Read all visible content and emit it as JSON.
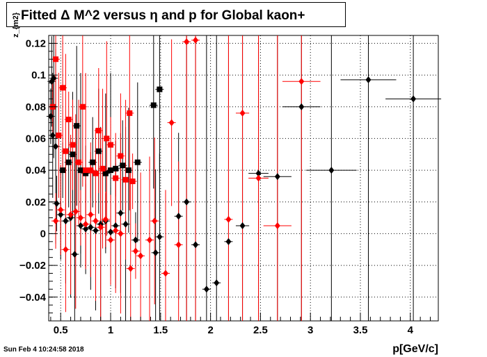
{
  "chart_data": {
    "type": "scatter",
    "title": "Fitted Δ M^2 versus η and p for Global kaon+",
    "xlabel": "p[GeV/c]",
    "ylabel": "z_{m2}",
    "xlim": [
      0.38,
      4.28
    ],
    "ylim": [
      -0.055,
      0.125
    ],
    "x_ticks": [
      0.5,
      1,
      1.5,
      2,
      2.5,
      3,
      3.5,
      4
    ],
    "x_tick_labels": [
      "0.5",
      "1",
      "1.5",
      "2",
      "2.5",
      "3",
      "3.5",
      "4"
    ],
    "y_ticks": [
      -0.04,
      -0.02,
      0,
      0.02,
      0.04,
      0.06,
      0.08,
      0.1,
      0.12
    ],
    "y_tick_labels": [
      "−0.04",
      "−0.02",
      "0",
      "0.02",
      "0.04",
      "0.06",
      "0.08",
      "0.1",
      "0.12"
    ],
    "grid": true,
    "series": [
      {
        "color": "#000000",
        "marker": "diamond",
        "points": [
          {
            "x": 0.4,
            "y": 0.074
          },
          {
            "x": 0.41,
            "y": 0.096
          },
          {
            "x": 0.42,
            "y": 0.062
          },
          {
            "x": 0.43,
            "y": 0.098
          },
          {
            "x": 0.45,
            "y": 0.055
          },
          {
            "x": 0.46,
            "y": 0.019
          },
          {
            "x": 0.5,
            "y": 0.012
          },
          {
            "x": 0.55,
            "y": 0.008
          },
          {
            "x": 0.6,
            "y": 0.01
          },
          {
            "x": 0.64,
            "y": -0.013
          },
          {
            "x": 0.7,
            "y": 0.005
          },
          {
            "x": 0.75,
            "y": 0.003
          },
          {
            "x": 0.8,
            "y": 0.004
          },
          {
            "x": 0.85,
            "y": 0.002
          },
          {
            "x": 0.9,
            "y": 0.006
          },
          {
            "x": 0.95,
            "y": 0.008
          },
          {
            "x": 1.0,
            "y": 0.001
          },
          {
            "x": 1.05,
            "y": 0.005
          },
          {
            "x": 1.1,
            "y": 0.013
          },
          {
            "x": 1.15,
            "y": 0.006
          },
          {
            "x": 1.25,
            "y": -0.004
          },
          {
            "x": 1.45,
            "y": -0.012
          },
          {
            "x": 1.49,
            "y": -0.002
          },
          {
            "x": 1.68,
            "y": 0.011
          },
          {
            "x": 1.76,
            "y": 0.02
          },
          {
            "x": 1.85,
            "y": -0.007
          },
          {
            "x": 1.96,
            "y": -0.035
          },
          {
            "x": 2.06,
            "y": -0.031
          },
          {
            "x": 2.18,
            "y": -0.005
          },
          {
            "x": 2.32,
            "y": 0.005
          },
          {
            "x": 2.48,
            "y": 0.038
          },
          {
            "x": 2.67,
            "y": 0.036
          },
          {
            "x": 2.91,
            "y": 0.08
          },
          {
            "x": 3.21,
            "y": 0.04
          },
          {
            "x": 3.58,
            "y": 0.097
          },
          {
            "x": 4.03,
            "y": 0.085
          }
        ]
      },
      {
        "color": "#000000",
        "marker": "square",
        "points": [
          {
            "x": 0.52,
            "y": 0.04
          },
          {
            "x": 0.58,
            "y": 0.045
          },
          {
            "x": 0.62,
            "y": 0.05
          },
          {
            "x": 0.66,
            "y": 0.068
          },
          {
            "x": 0.7,
            "y": 0.04
          },
          {
            "x": 0.75,
            "y": 0.038
          },
          {
            "x": 0.82,
            "y": 0.045
          },
          {
            "x": 0.88,
            "y": 0.052
          },
          {
            "x": 0.95,
            "y": 0.038
          },
          {
            "x": 1.0,
            "y": 0.04
          },
          {
            "x": 1.05,
            "y": 0.041
          },
          {
            "x": 1.12,
            "y": 0.043
          },
          {
            "x": 1.18,
            "y": 0.04
          },
          {
            "x": 1.27,
            "y": 0.045
          },
          {
            "x": 1.43,
            "y": 0.081
          },
          {
            "x": 1.49,
            "y": 0.091
          }
        ]
      },
      {
        "color": "#ff0000",
        "marker": "diamond",
        "points": [
          {
            "x": 0.45,
            "y": 0.008
          },
          {
            "x": 0.5,
            "y": 0.015
          },
          {
            "x": 0.55,
            "y": -0.01
          },
          {
            "x": 0.6,
            "y": 0.012
          },
          {
            "x": 0.65,
            "y": 0.014
          },
          {
            "x": 0.7,
            "y": 0.01
          },
          {
            "x": 0.75,
            "y": 0.006
          },
          {
            "x": 0.8,
            "y": 0.012
          },
          {
            "x": 0.85,
            "y": 0.008
          },
          {
            "x": 0.9,
            "y": 0.004
          },
          {
            "x": 0.95,
            "y": 0.009
          },
          {
            "x": 1.0,
            "y": -0.004
          },
          {
            "x": 1.05,
            "y": 0.002
          },
          {
            "x": 1.1,
            "y": 0.0
          },
          {
            "x": 1.2,
            "y": -0.022
          },
          {
            "x": 1.25,
            "y": -0.011
          },
          {
            "x": 1.3,
            "y": -0.014
          },
          {
            "x": 1.39,
            "y": -0.004
          },
          {
            "x": 1.44,
            "y": 0.008
          },
          {
            "x": 1.55,
            "y": -0.025
          },
          {
            "x": 1.61,
            "y": 0.07
          },
          {
            "x": 1.68,
            "y": -0.007
          },
          {
            "x": 1.76,
            "y": 0.121
          },
          {
            "x": 1.85,
            "y": 0.122
          },
          {
            "x": 2.18,
            "y": 0.009
          },
          {
            "x": 2.32,
            "y": 0.076
          },
          {
            "x": 2.48,
            "y": 0.035
          },
          {
            "x": 2.67,
            "y": 0.005
          },
          {
            "x": 2.91,
            "y": 0.096
          }
        ]
      },
      {
        "color": "#ff0000",
        "marker": "square",
        "points": [
          {
            "x": 0.42,
            "y": 0.08
          },
          {
            "x": 0.45,
            "y": 0.11
          },
          {
            "x": 0.48,
            "y": 0.062
          },
          {
            "x": 0.52,
            "y": 0.092
          },
          {
            "x": 0.55,
            "y": 0.052
          },
          {
            "x": 0.58,
            "y": 0.072
          },
          {
            "x": 0.62,
            "y": 0.056
          },
          {
            "x": 0.68,
            "y": 0.045
          },
          {
            "x": 0.72,
            "y": 0.08
          },
          {
            "x": 0.75,
            "y": 0.04
          },
          {
            "x": 0.8,
            "y": 0.04
          },
          {
            "x": 0.85,
            "y": 0.038
          },
          {
            "x": 0.88,
            "y": 0.065
          },
          {
            "x": 0.92,
            "y": 0.041
          },
          {
            "x": 0.96,
            "y": 0.06
          },
          {
            "x": 1.0,
            "y": 0.056
          },
          {
            "x": 1.05,
            "y": 0.035
          },
          {
            "x": 1.1,
            "y": 0.049
          },
          {
            "x": 1.15,
            "y": 0.034
          },
          {
            "x": 1.19,
            "y": 0.076
          },
          {
            "x": 1.22,
            "y": 0.033
          }
        ]
      }
    ]
  },
  "footer": {
    "date": "Sun Feb  4 10:24:58 2018"
  }
}
